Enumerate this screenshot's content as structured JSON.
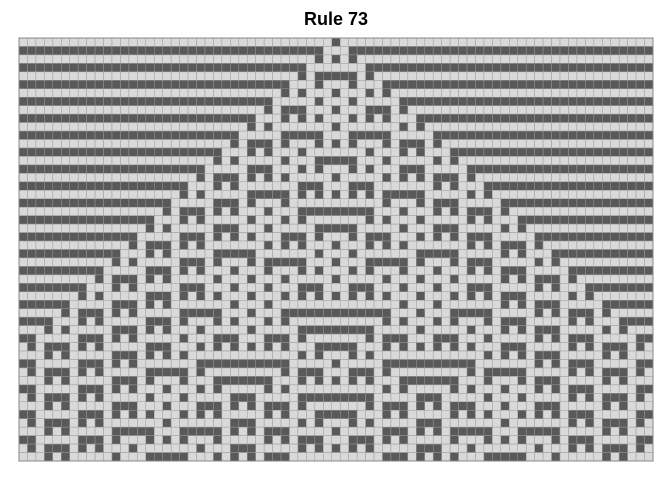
{
  "title": "Rule 73",
  "rule": 73,
  "columns": 75,
  "rows": 50
}
